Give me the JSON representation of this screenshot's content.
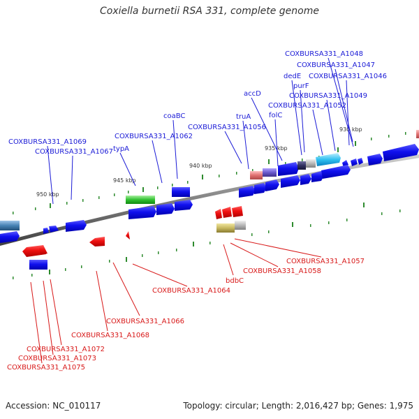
{
  "title": "Coxiella burnetii RSA 331, complete genome",
  "footer": {
    "accession": "Accession: NC_010117",
    "summary": "Topology: circular; Length: 2,016,427 bp; Genes: 1,975"
  },
  "scale_labels": [
    "930 kbp",
    "935 kbp",
    "940 kbp",
    "945 kbp",
    "950 kbp"
  ],
  "forward_labels": [
    "COXBURSA331_A1048",
    "COXBURSA331_A1047",
    "dedE",
    "COXBURSA331_A1046",
    "purF",
    "accD",
    "COXBURSA331_A1049",
    "COXBURSA331_A1052",
    "truA",
    "folC",
    "coaBC",
    "COXBURSA331_A1056",
    "COXBURSA331_A1062",
    "typA",
    "COXBURSA331_A1069",
    "COXBURSA331_A1067"
  ],
  "reverse_labels": [
    "COXBURSA331_A1057",
    "COXBURSA331_A1058",
    "bdbC",
    "COXBURSA331_A1064",
    "COXBURSA331_A1066",
    "COXBURSA331_A1068",
    "COXBURSA331_A1072",
    "COXBURSA331_A1073",
    "COXBURSA331_A1075"
  ],
  "colors": {
    "forward": "#1a1ad6",
    "reverse": "#d81818",
    "backbone": "#808080"
  }
}
